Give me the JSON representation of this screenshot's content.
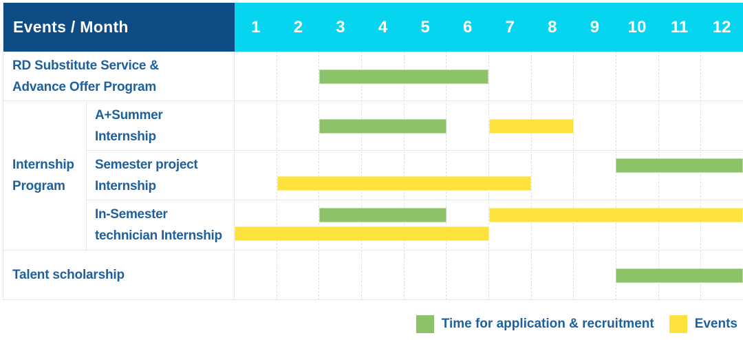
{
  "header": {
    "title": "Events / Month",
    "months": [
      "1",
      "2",
      "3",
      "4",
      "5",
      "6",
      "7",
      "8",
      "9",
      "10",
      "11",
      "12"
    ]
  },
  "group_header": {
    "label": "Internship Program",
    "lines": [
      "Internship",
      "Program"
    ]
  },
  "legend": {
    "items": [
      {
        "kind": "recruitment",
        "label": "Time for application & recruitment"
      },
      {
        "kind": "event",
        "label": "Events"
      }
    ]
  },
  "colors": {
    "navy": "#0d4c84",
    "cyan": "#06d5f0",
    "green": "#8cc368",
    "yellow": "#fde23e",
    "label_blue": "#1e5f9e",
    "grid_line": "#e4e7ea"
  },
  "chart_data": {
    "type": "gantt",
    "title": "Events / Month",
    "x_unit": "month",
    "x_range": [
      1,
      12
    ],
    "legend": [
      "Time for application & recruitment",
      "Events"
    ],
    "rows": [
      {
        "group": null,
        "label": "RD Substitute Service & Advance Offer Program",
        "label_lines": [
          "RD Substitute Service &",
          "Advance Offer Program"
        ],
        "bars": [
          {
            "kind": "recruitment",
            "start_month": 3,
            "end_month": 6,
            "line": "center"
          }
        ]
      },
      {
        "group": "Internship Program",
        "label": "A+Summer Internship",
        "label_lines": [
          "A+Summer",
          "Internship"
        ],
        "bars": [
          {
            "kind": "recruitment",
            "start_month": 3,
            "end_month": 5,
            "line": "center"
          },
          {
            "kind": "event",
            "start_month": 7,
            "end_month": 8,
            "line": "center"
          }
        ]
      },
      {
        "group": "Internship Program",
        "label": "Semester project Internship",
        "label_lines": [
          "Semester project",
          "Internship"
        ],
        "bars": [
          {
            "kind": "recruitment",
            "start_month": 10,
            "end_month": 12,
            "line": "top"
          },
          {
            "kind": "event",
            "start_month": 2,
            "end_month": 7,
            "line": "bottom"
          }
        ]
      },
      {
        "group": "Internship Program",
        "label": "In-Semester technician Internship",
        "label_lines": [
          "In-Semester",
          "technician Internship"
        ],
        "bars": [
          {
            "kind": "recruitment",
            "start_month": 3,
            "end_month": 5,
            "line": "top"
          },
          {
            "kind": "event",
            "start_month": 7,
            "end_month": 12,
            "line": "top"
          },
          {
            "kind": "event",
            "start_month": 1,
            "end_month": 6,
            "line": "bottom"
          }
        ]
      },
      {
        "group": null,
        "label": "Talent scholarship",
        "label_lines": [
          "Talent scholarship"
        ],
        "bars": [
          {
            "kind": "recruitment",
            "start_month": 10,
            "end_month": 12,
            "line": "center"
          }
        ]
      }
    ]
  }
}
